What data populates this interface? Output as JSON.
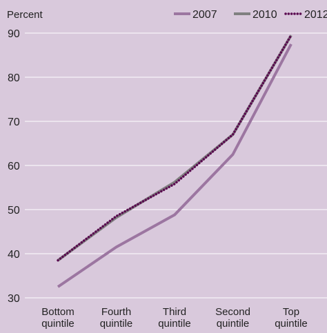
{
  "chart_data": {
    "type": "line",
    "ylabel": "Percent",
    "xlabel": "",
    "ylim": [
      30,
      90
    ],
    "yticks": [
      30,
      40,
      50,
      60,
      70,
      80,
      90
    ],
    "grid": true,
    "legend_position": "top-right",
    "categories": [
      [
        "Bottom",
        "quintile"
      ],
      [
        "Fourth",
        "quintile"
      ],
      [
        "Third",
        "quintile"
      ],
      [
        "Second",
        "quintile"
      ],
      [
        "Top",
        "quintile"
      ]
    ],
    "series": [
      {
        "name": "2007",
        "values": [
          32.5,
          41.5,
          48.8,
          62.5,
          87.5
        ],
        "color": "#9c76a1",
        "style": "solid"
      },
      {
        "name": "2010",
        "values": [
          38.5,
          48.2,
          56.2,
          67.0,
          89.5
        ],
        "color": "#808080",
        "style": "solid"
      },
      {
        "name": "2012",
        "values": [
          38.5,
          48.5,
          55.8,
          67.0,
          89.5
        ],
        "color": "#5a0a50",
        "style": "dotted"
      }
    ]
  }
}
